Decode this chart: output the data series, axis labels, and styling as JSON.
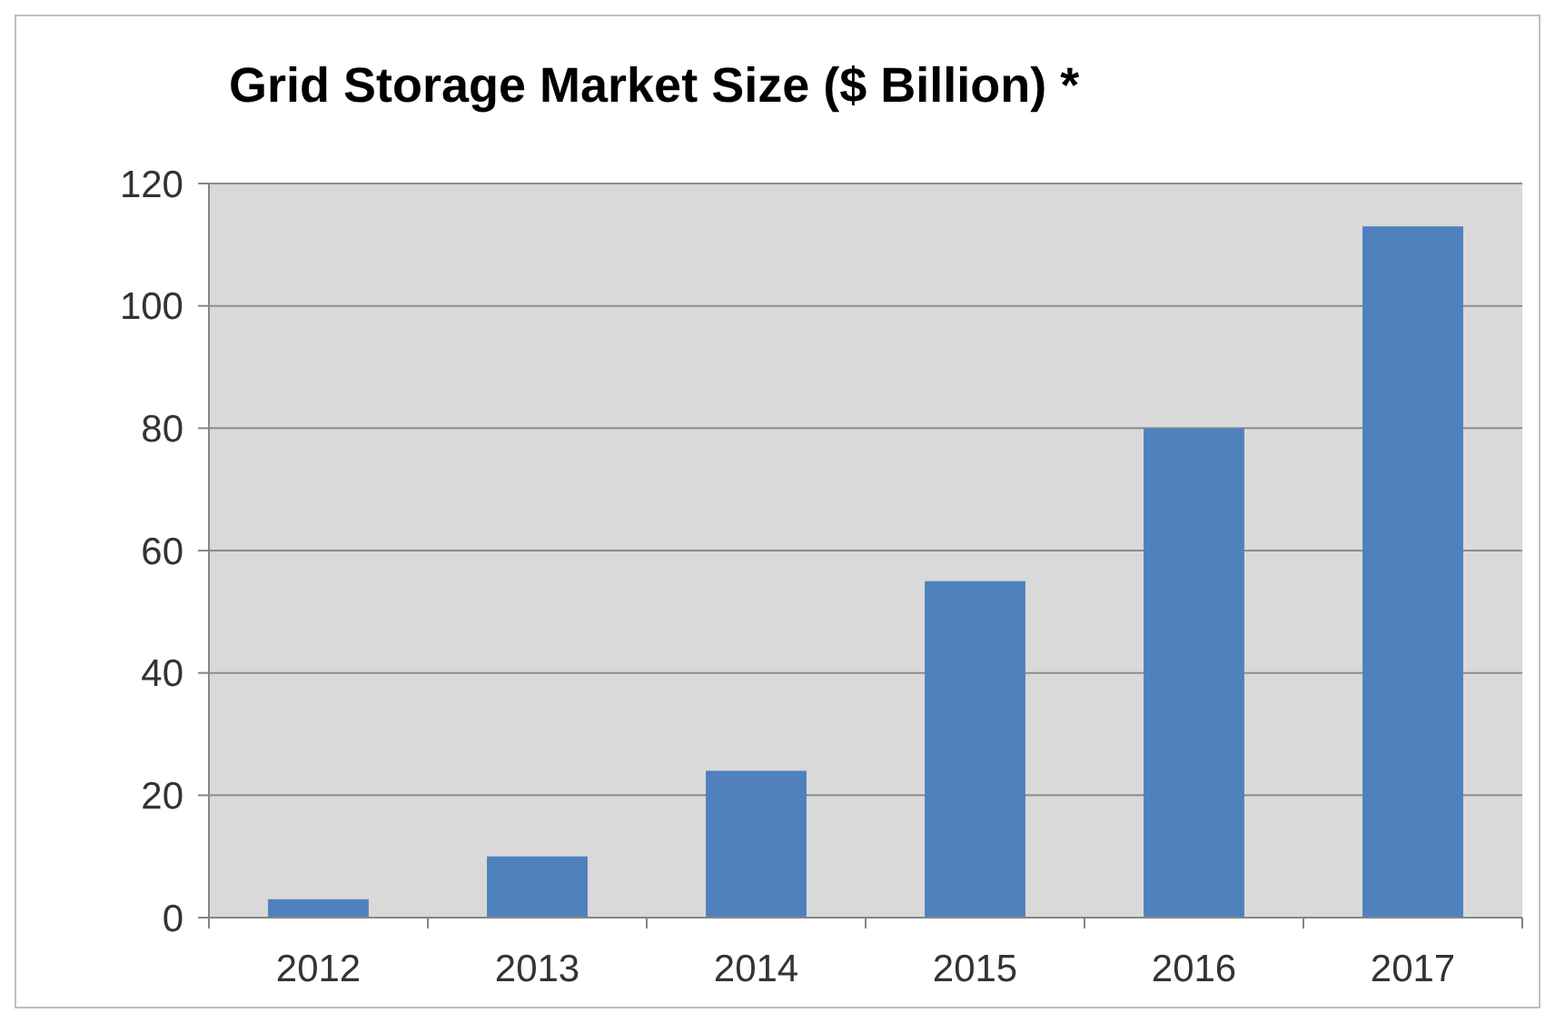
{
  "chart_data": {
    "type": "bar",
    "title": "Grid Storage Market Size ($ Billion) *",
    "categories": [
      "2012",
      "2013",
      "2014",
      "2015",
      "2016",
      "2017"
    ],
    "values": [
      3,
      10,
      24,
      55,
      80,
      113
    ],
    "color": "#4f81bd",
    "ylim": [
      0,
      120
    ],
    "yticks": [
      0,
      20,
      40,
      60,
      80,
      100,
      120
    ],
    "grid": "y"
  }
}
